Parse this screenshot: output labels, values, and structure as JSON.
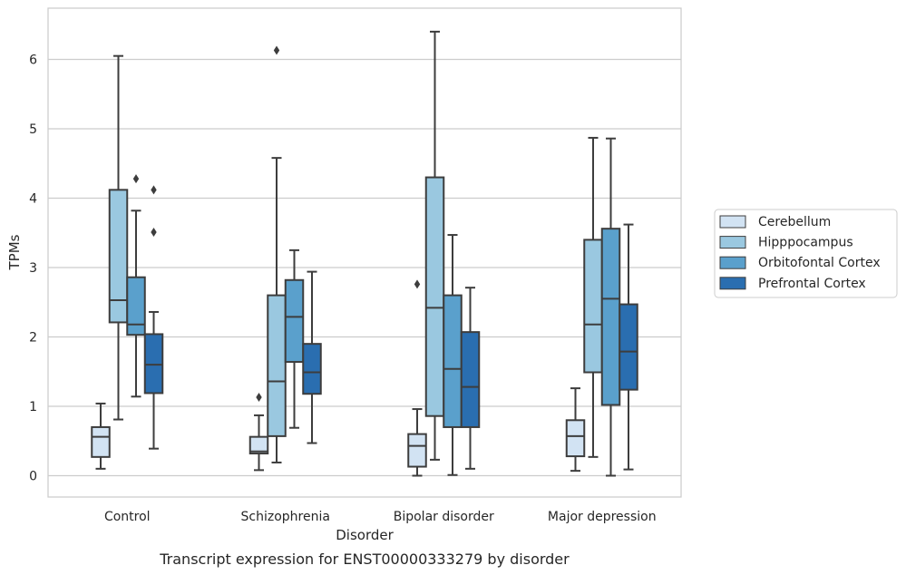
{
  "chart_data": {
    "type": "boxplot",
    "caption": "Transcript expression for ENST00000333279 by disorder",
    "xlabel": "Disorder",
    "ylabel": "TPMs",
    "ylim": [
      -0.3,
      6.75
    ],
    "yticks": [
      0,
      1,
      2,
      3,
      4,
      5,
      6
    ],
    "grid": "horizontal",
    "legend_position": "right",
    "categories": [
      "Control",
      "Schizophrenia",
      "Bipolar disorder",
      "Major depression"
    ],
    "series": [
      {
        "name": "Cerebellum",
        "color": "#d2e3f3",
        "boxes": [
          {
            "whislo": 0.1,
            "q1": 0.27,
            "med": 0.56,
            "q3": 0.7,
            "whishi": 1.04,
            "fliers": []
          },
          {
            "whislo": 0.08,
            "q1": 0.32,
            "med": 0.35,
            "q3": 0.56,
            "whishi": 0.87,
            "fliers": [
              1.13
            ]
          },
          {
            "whislo": 0.0,
            "q1": 0.13,
            "med": 0.43,
            "q3": 0.6,
            "whishi": 0.96,
            "fliers": [
              2.76
            ]
          },
          {
            "whislo": 0.07,
            "q1": 0.28,
            "med": 0.57,
            "q3": 0.8,
            "whishi": 1.26,
            "fliers": []
          }
        ]
      },
      {
        "name": "Hipppocampus",
        "color": "#9ac8e0",
        "boxes": [
          {
            "whislo": 0.81,
            "q1": 2.21,
            "med": 2.53,
            "q3": 4.12,
            "whishi": 6.05,
            "fliers": []
          },
          {
            "whislo": 0.19,
            "q1": 0.57,
            "med": 1.36,
            "q3": 2.6,
            "whishi": 4.58,
            "fliers": [
              6.13
            ]
          },
          {
            "whislo": 0.23,
            "q1": 0.86,
            "med": 2.42,
            "q3": 4.3,
            "whishi": 6.4,
            "fliers": []
          },
          {
            "whislo": 0.27,
            "q1": 1.49,
            "med": 2.18,
            "q3": 3.4,
            "whishi": 4.87,
            "fliers": []
          }
        ]
      },
      {
        "name": "Orbitofontal Cortex",
        "color": "#5aa0cc",
        "boxes": [
          {
            "whislo": 1.14,
            "q1": 2.03,
            "med": 2.18,
            "q3": 2.86,
            "whishi": 3.82,
            "fliers": [
              4.28
            ]
          },
          {
            "whislo": 0.69,
            "q1": 1.64,
            "med": 2.29,
            "q3": 2.82,
            "whishi": 3.25,
            "fliers": []
          },
          {
            "whislo": 0.01,
            "q1": 0.7,
            "med": 1.54,
            "q3": 2.6,
            "whishi": 3.47,
            "fliers": []
          },
          {
            "whislo": 0.0,
            "q1": 1.02,
            "med": 2.55,
            "q3": 3.56,
            "whishi": 4.86,
            "fliers": []
          }
        ]
      },
      {
        "name": "Prefrontal Cortex",
        "color": "#2a6eb0",
        "boxes": [
          {
            "whislo": 0.39,
            "q1": 1.19,
            "med": 1.6,
            "q3": 2.04,
            "whishi": 2.36,
            "fliers": [
              3.51,
              4.12
            ]
          },
          {
            "whislo": 0.47,
            "q1": 1.18,
            "med": 1.49,
            "q3": 1.9,
            "whishi": 2.94,
            "fliers": []
          },
          {
            "whislo": 0.1,
            "q1": 0.7,
            "med": 1.28,
            "q3": 2.07,
            "whishi": 2.71,
            "fliers": []
          },
          {
            "whislo": 0.09,
            "q1": 1.24,
            "med": 1.79,
            "q3": 2.47,
            "whishi": 3.62,
            "fliers": []
          }
        ]
      }
    ]
  }
}
